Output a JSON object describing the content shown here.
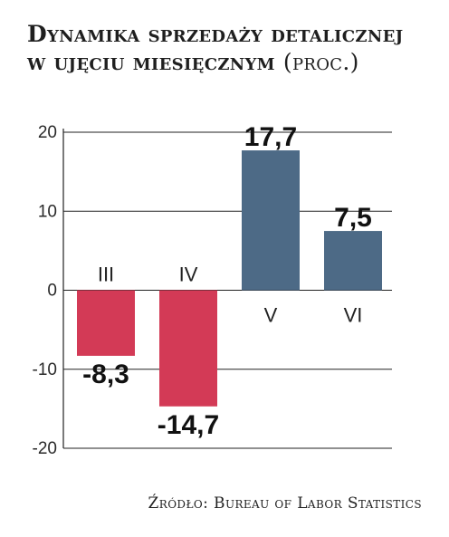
{
  "title": {
    "main": "Dynamika sprzedaży detalicznej w ujęciu miesięcznym",
    "unit": "(proc.)"
  },
  "source": "Źródło: Bureau of Labor Statistics",
  "chart_data": {
    "type": "bar",
    "categories": [
      "III",
      "IV",
      "V",
      "VI"
    ],
    "values": [
      -8.3,
      -14.7,
      17.7,
      7.5
    ],
    "value_labels": [
      "-8,3",
      "-14,7",
      "17,7",
      "7,5"
    ],
    "ylim": [
      -20,
      20
    ],
    "yticks": [
      20,
      10,
      0,
      -10,
      -20
    ],
    "ytick_labels": [
      "20",
      "10",
      "0",
      "-10",
      "-20"
    ],
    "grid": true,
    "colors": {
      "negative": "#d33a56",
      "positive": "#4d6a86"
    }
  }
}
